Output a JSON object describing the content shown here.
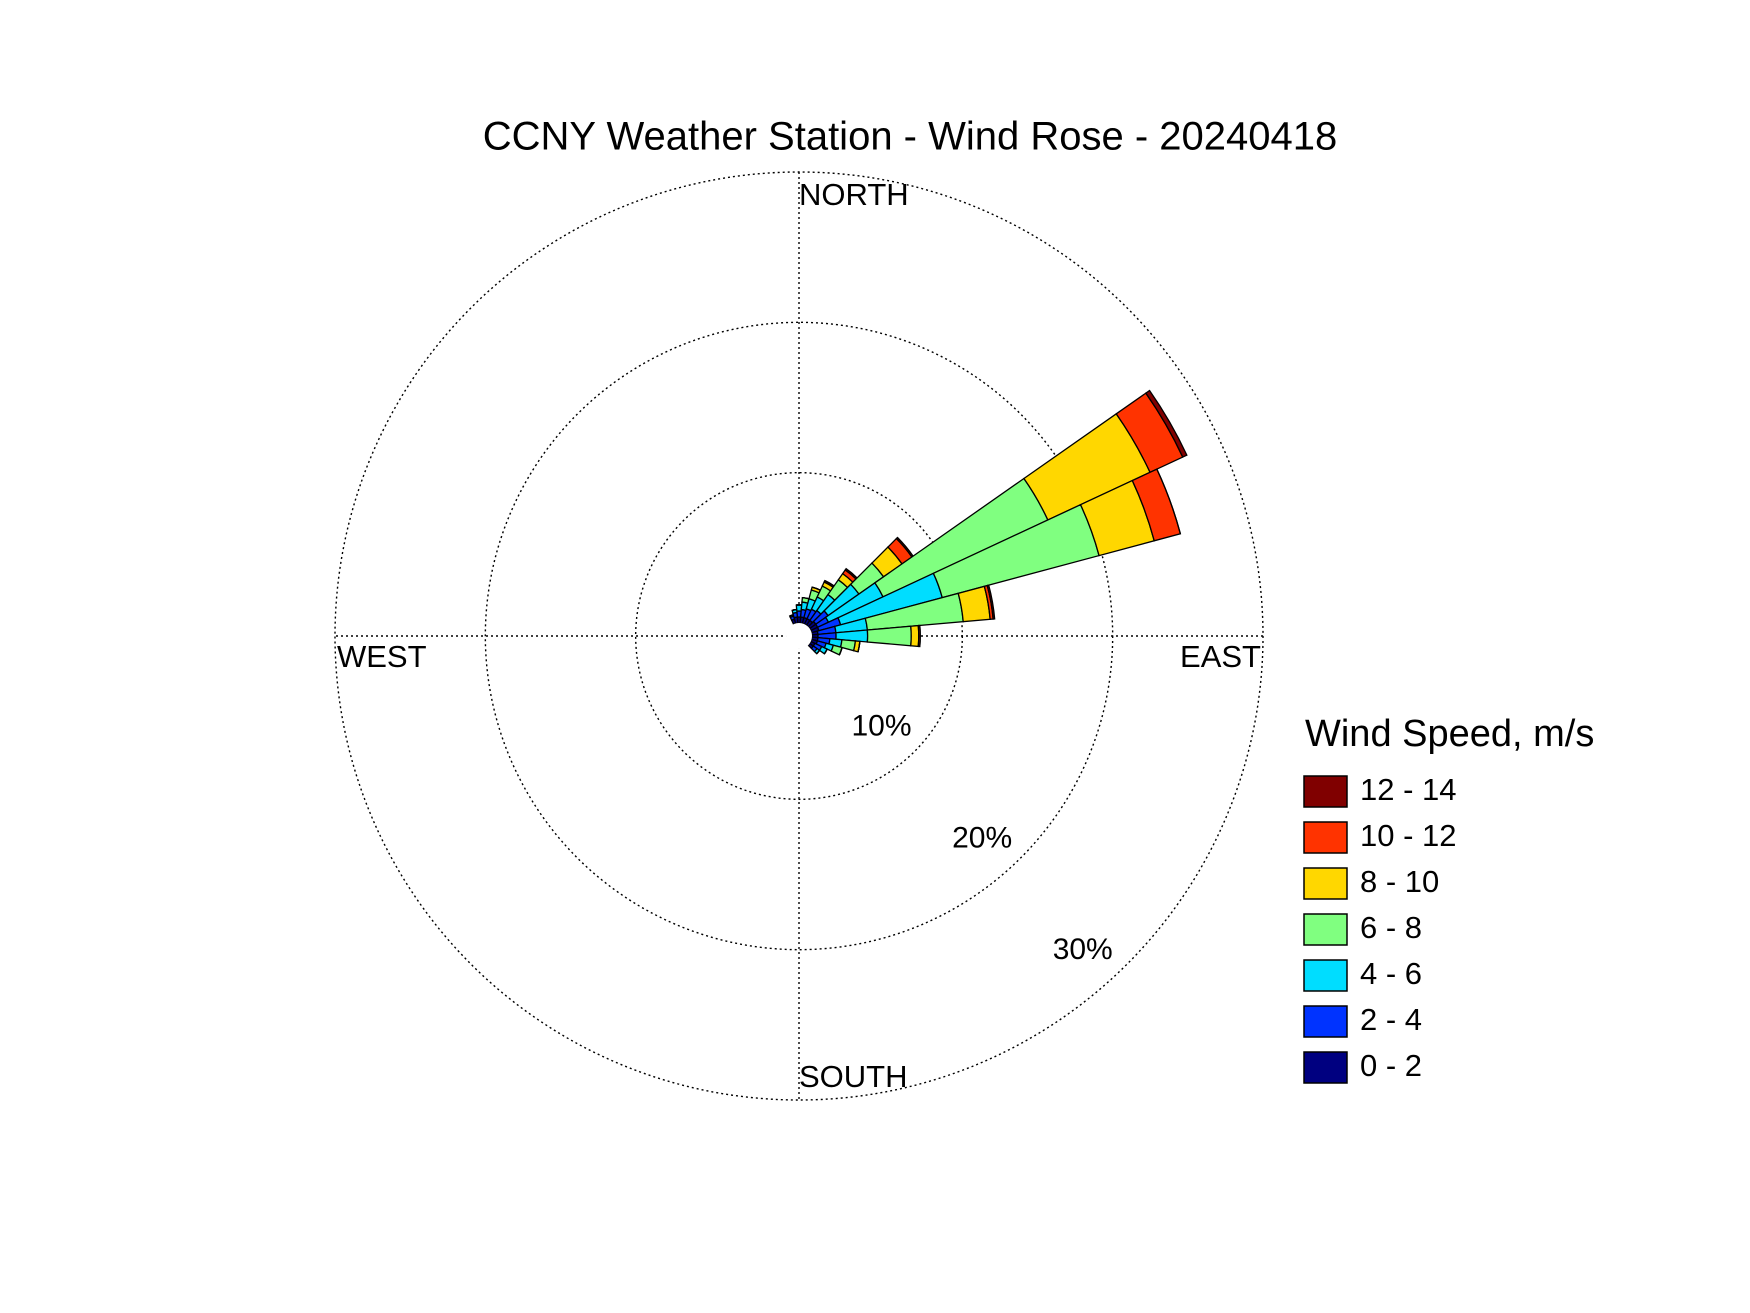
{
  "chart_data": {
    "type": "windrose",
    "title": "CCNY Weather Station - Wind Rose - 20240418",
    "direction_labels": [
      "NORTH",
      "EAST",
      "SOUTH",
      "WEST"
    ],
    "x": [
      0,
      10,
      20,
      30,
      40,
      50,
      60,
      70,
      80,
      90,
      100,
      110,
      120,
      130,
      340,
      350
    ],
    "series": [
      {
        "name": "0 - 2",
        "color": "#000080",
        "values": [
          0.4,
          0.4,
          0.4,
          0.4,
          0.4,
          0.5,
          0.5,
          0.5,
          0.4,
          0.4,
          0.4,
          0.4,
          0.3,
          0.3,
          0.3,
          0.4
        ]
      },
      {
        "name": "2 - 4",
        "color": "#0033ff",
        "values": [
          0.4,
          0.5,
          0.6,
          0.7,
          0.8,
          1.0,
          0.8,
          1.5,
          1.2,
          1.2,
          0.8,
          0.6,
          0.5,
          0.3,
          0.2,
          0.3
        ]
      },
      {
        "name": "4 - 6",
        "color": "#00ddff",
        "values": [
          0.4,
          0.5,
          0.7,
          0.9,
          1.3,
          2.5,
          4,
          7,
          2.1,
          2.1,
          0.8,
          0.5,
          0.4,
          0.2,
          0.1,
          0.2
        ]
      },
      {
        "name": "6 - 8",
        "color": "#80ff80",
        "values": [
          0,
          0.3,
          0.6,
          0.8,
          1.2,
          2.0,
          12.1,
          10.8,
          6.4,
          2.9,
          0.9,
          0.6,
          0,
          0,
          0,
          0
        ]
      },
      {
        "name": "8 - 10",
        "color": "#ffd700",
        "values": [
          0,
          0,
          0.2,
          0.3,
          0.5,
          1.5,
          7.5,
          3.8,
          1.8,
          0.5,
          0.3,
          0,
          0,
          0,
          0,
          0
        ]
      },
      {
        "name": "10 - 12",
        "color": "#ff3300",
        "values": [
          0,
          0,
          0,
          0.1,
          0.3,
          0.8,
          2.4,
          1.8,
          0.2,
          0.1,
          0,
          0,
          0,
          0,
          0,
          0
        ]
      },
      {
        "name": "12 - 14",
        "color": "#800000",
        "values": [
          0,
          0,
          0,
          0,
          0.1,
          0.1,
          0.3,
          0,
          0.1,
          0,
          0,
          0,
          0,
          0,
          0,
          0
        ]
      }
    ],
    "sector_width": 10,
    "rlim": [
      0,
      30
    ],
    "rticks": [
      {
        "value": 10,
        "label": "10%"
      },
      {
        "value": 20,
        "label": "20%"
      },
      {
        "value": 30,
        "label": "30%"
      }
    ],
    "legend_title": "Wind Speed, m/s",
    "grid": true
  }
}
